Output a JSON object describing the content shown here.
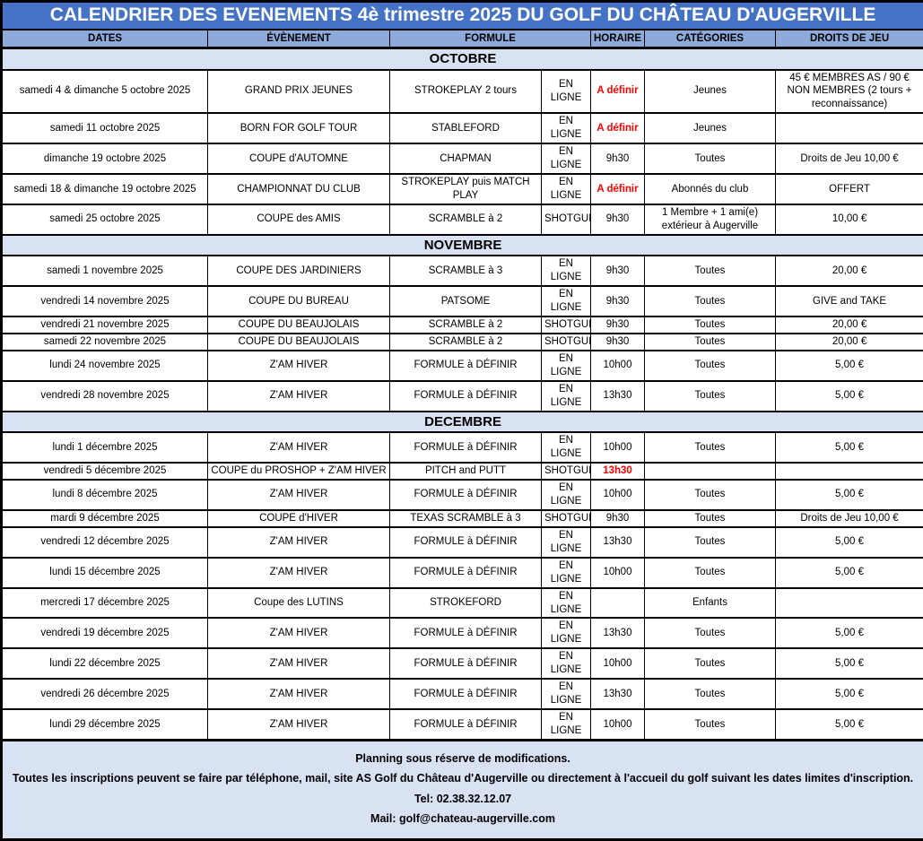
{
  "title": "CALENDRIER DES EVENEMENTS 4è trimestre 2025 DU GOLF DU CHÂTEAU D'AUGERVILLE",
  "columns": [
    "DATES",
    "ÉVÈNEMENT",
    "FORMULE",
    "HORAIRE",
    "CATÉGORIES",
    "DROITS DE JEU"
  ],
  "colors": {
    "title_bg": "#4472C4",
    "header_bg": "#8EAADB",
    "section_bg": "#D9E2F3",
    "highlight_red": "#FF0000"
  },
  "sections": [
    {
      "month": "OCTOBRE",
      "rows": [
        {
          "date": "samedi 4 & dimanche 5 octobre 2025",
          "event": "GRAND PRIX JEUNES",
          "formule": "STROKEPLAY 2 tours",
          "inscription": "EN LIGNE",
          "horaire": "A définir",
          "horaire_red": true,
          "categories": "Jeunes",
          "droits": "45 € MEMBRES AS / 90 € NON MEMBRES (2 tours + reconnaissance)"
        },
        {
          "date": "samedi 11 octobre 2025",
          "event": "BORN FOR GOLF TOUR",
          "formule": "STABLEFORD",
          "inscription": "EN LIGNE",
          "horaire": "A définir",
          "horaire_red": true,
          "categories": "Jeunes",
          "droits": ""
        },
        {
          "date": "dimanche 19 octobre 2025",
          "event": "COUPE d'AUTOMNE",
          "formule": "CHAPMAN",
          "inscription": "EN LIGNE",
          "horaire": "9h30",
          "horaire_red": false,
          "categories": "Toutes",
          "droits": "Droits de Jeu 10,00 €"
        },
        {
          "date": "samedi 18 & dimanche 19 octobre 2025",
          "event": "CHAMPIONNAT DU CLUB",
          "formule": "STROKEPLAY puis MATCH PLAY",
          "inscription": "EN LIGNE",
          "horaire": "A définir",
          "horaire_red": true,
          "categories": "Abonnés du club",
          "droits": "OFFERT"
        },
        {
          "date": "samedi 25 octobre 2025",
          "event": "COUPE des AMIS",
          "formule": "SCRAMBLE à 2",
          "inscription": "SHOTGUN",
          "horaire": "9h30",
          "horaire_red": false,
          "categories": "1 Membre + 1 ami(e) extérieur à Augerville",
          "droits": "10,00 €"
        }
      ]
    },
    {
      "month": "NOVEMBRE",
      "rows": [
        {
          "date": "samedi 1 novembre 2025",
          "event": "COUPE DES JARDINIERS",
          "formule": "SCRAMBLE à 3",
          "inscription": "EN LIGNE",
          "horaire": "9h30",
          "horaire_red": false,
          "categories": "Toutes",
          "droits": "20,00 €"
        },
        {
          "date": "vendredi 14 novembre 2025",
          "event": "COUPE DU BUREAU",
          "formule": "PATSOME",
          "inscription": "EN LIGNE",
          "horaire": "9h30",
          "horaire_red": false,
          "categories": "Toutes",
          "droits": "GIVE and TAKE"
        },
        {
          "date": "vendredi 21 novembre 2025",
          "event": "COUPE DU BEAUJOLAIS",
          "formule": "SCRAMBLE à 2",
          "inscription": "SHOTGUN",
          "horaire": "9h30",
          "horaire_red": false,
          "categories": "Toutes",
          "droits": "20,00 €"
        },
        {
          "date": "samedi 22 novembre 2025",
          "event": "COUPE DU BEAUJOLAIS",
          "formule": "SCRAMBLE à 2",
          "inscription": "SHOTGUN",
          "horaire": "9h30",
          "horaire_red": false,
          "categories": "Toutes",
          "droits": "20,00 €"
        },
        {
          "date": "lundi 24 novembre 2025",
          "event": "Z'AM HIVER",
          "formule": "FORMULE à DÉFINIR",
          "inscription": "EN LIGNE",
          "horaire": "10h00",
          "horaire_red": false,
          "categories": "Toutes",
          "droits": "5,00 €"
        },
        {
          "date": "vendredi 28 novembre 2025",
          "event": "Z'AM HIVER",
          "formule": "FORMULE à DÉFINIR",
          "inscription": "EN LIGNE",
          "horaire": "13h30",
          "horaire_red": false,
          "categories": "Toutes",
          "droits": "5,00 €"
        }
      ]
    },
    {
      "month": "DECEMBRE",
      "rows": [
        {
          "date": "lundi 1 décembre 2025",
          "event": "Z'AM HIVER",
          "formule": "FORMULE à DÉFINIR",
          "inscription": "EN LIGNE",
          "horaire": "10h00",
          "horaire_red": false,
          "categories": "Toutes",
          "droits": "5,00 €"
        },
        {
          "date": "vendredi 5 décembre 2025",
          "event": "COUPE du PROSHOP + Z'AM HIVER",
          "formule": "PITCH and PUTT",
          "inscription": "SHOTGUN",
          "horaire": "13h30",
          "horaire_red": true,
          "categories": "",
          "droits": ""
        },
        {
          "date": "lundi 8 décembre 2025",
          "event": "Z'AM HIVER",
          "formule": "FORMULE à DÉFINIR",
          "inscription": "EN LIGNE",
          "horaire": "10h00",
          "horaire_red": false,
          "categories": "Toutes",
          "droits": "5,00 €"
        },
        {
          "date": "mardi 9 décembre 2025",
          "event": "COUPE d'HIVER",
          "formule": "TEXAS SCRAMBLE à 3",
          "inscription": "SHOTGUN",
          "horaire": "9h30",
          "horaire_red": false,
          "categories": "Toutes",
          "droits": "Droits de Jeu 10,00 €"
        },
        {
          "date": "vendredi 12 décembre 2025",
          "event": "Z'AM HIVER",
          "formule": "FORMULE à DÉFINIR",
          "inscription": "EN LIGNE",
          "horaire": "13h30",
          "horaire_red": false,
          "categories": "Toutes",
          "droits": "5,00 €"
        },
        {
          "date": "lundi 15 décembre 2025",
          "event": "Z'AM HIVER",
          "formule": "FORMULE à DÉFINIR",
          "inscription": "EN LIGNE",
          "horaire": "10h00",
          "horaire_red": false,
          "categories": "Toutes",
          "droits": "5,00 €"
        },
        {
          "date": "mercredi 17 décembre 2025",
          "event": "Coupe des LUTINS",
          "formule": "STROKEFORD",
          "inscription": "EN LIGNE",
          "horaire": "",
          "horaire_red": false,
          "categories": "Enfants",
          "droits": ""
        },
        {
          "date": "vendredi 19 décembre 2025",
          "event": "Z'AM HIVER",
          "formule": "FORMULE à DÉFINIR",
          "inscription": "EN LIGNE",
          "horaire": "13h30",
          "horaire_red": false,
          "categories": "Toutes",
          "droits": "5,00 €"
        },
        {
          "date": "lundi 22 décembre 2025",
          "event": "Z'AM HIVER",
          "formule": "FORMULE à DÉFINIR",
          "inscription": "EN LIGNE",
          "horaire": "10h00",
          "horaire_red": false,
          "categories": "Toutes",
          "droits": "5,00 €"
        },
        {
          "date": "vendredi 26 décembre 2025",
          "event": "Z'AM HIVER",
          "formule": "FORMULE à DÉFINIR",
          "inscription": "EN LIGNE",
          "horaire": "13h30",
          "horaire_red": false,
          "categories": "Toutes",
          "droits": "5,00 €"
        },
        {
          "date": "lundi 29 décembre 2025",
          "event": "Z'AM HIVER",
          "formule": "FORMULE à DÉFINIR",
          "inscription": "EN LIGNE",
          "horaire": "10h00",
          "horaire_red": false,
          "categories": "Toutes",
          "droits": "5,00 €"
        }
      ]
    }
  ],
  "footer": {
    "note1": "Planning sous réserve de modifications.",
    "note2": "Toutes les inscriptions peuvent se faire par téléphone, mail, site AS Golf du Château d'Augerville ou directement à l'accueil du golf suivant les dates limites d'inscription.",
    "tel": "Tel: 02.38.32.12.07",
    "mail": "Mail: golf@chateau-augerville.com"
  }
}
